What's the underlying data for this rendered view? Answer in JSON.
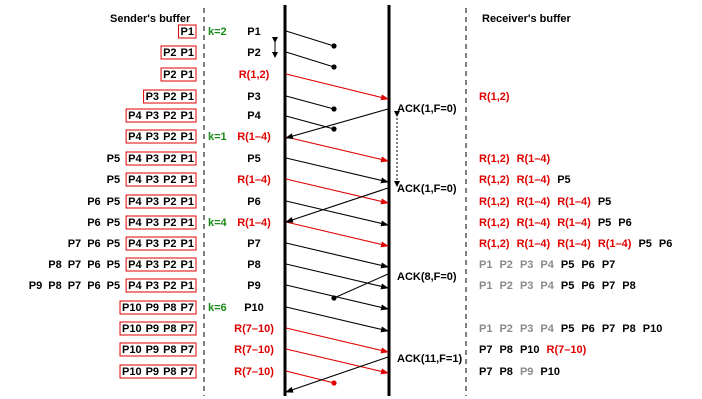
{
  "headers": {
    "sender": "Sender's buffer",
    "receiver": "Receiver's buffer"
  },
  "colors": {
    "black": "#000000",
    "red": "#e00000",
    "green": "#1a8a1a",
    "gray": "#8a8a8a",
    "box": "#e00000"
  },
  "rows": [
    {
      "sender_plain": [],
      "sender_boxed": [
        "P1"
      ],
      "k": "k=2",
      "packet": "P1",
      "packet_color": "black"
    },
    {
      "sender_plain": [],
      "sender_boxed": [
        "P2",
        "P1"
      ],
      "k": "",
      "packet": "P2",
      "packet_color": "black"
    },
    {
      "sender_plain": [],
      "sender_boxed": [
        "P2",
        "P1"
      ],
      "k": "",
      "packet": "R(1,2)",
      "packet_color": "red"
    },
    {
      "sender_plain": [],
      "sender_boxed": [
        "P3",
        "P2",
        "P1"
      ],
      "k": "",
      "packet": "P3",
      "packet_color": "black"
    },
    {
      "sender_plain": [],
      "sender_boxed": [
        "P4",
        "P3",
        "P2",
        "P1"
      ],
      "k": "",
      "packet": "P4",
      "packet_color": "black"
    },
    {
      "sender_plain": [],
      "sender_boxed": [
        "P4",
        "P3",
        "P2",
        "P1"
      ],
      "k": "k=1",
      "packet": "R(1–4)",
      "packet_color": "red"
    },
    {
      "sender_plain": [
        "P5"
      ],
      "sender_boxed": [
        "P4",
        "P3",
        "P2",
        "P1"
      ],
      "k": "",
      "packet": "P5",
      "packet_color": "black"
    },
    {
      "sender_plain": [
        "P5"
      ],
      "sender_boxed": [
        "P4",
        "P3",
        "P2",
        "P1"
      ],
      "k": "",
      "packet": "R(1–4)",
      "packet_color": "red"
    },
    {
      "sender_plain": [
        "P6",
        "P5"
      ],
      "sender_boxed": [
        "P4",
        "P3",
        "P2",
        "P1"
      ],
      "k": "",
      "packet": "P6",
      "packet_color": "black"
    },
    {
      "sender_plain": [
        "P6",
        "P5"
      ],
      "sender_boxed": [
        "P4",
        "P3",
        "P2",
        "P1"
      ],
      "k": "k=4",
      "packet": "R(1–4)",
      "packet_color": "red"
    },
    {
      "sender_plain": [
        "P7",
        "P6",
        "P5"
      ],
      "sender_boxed": [
        "P4",
        "P3",
        "P2",
        "P1"
      ],
      "k": "",
      "packet": "P7",
      "packet_color": "black"
    },
    {
      "sender_plain": [
        "P8",
        "P7",
        "P6",
        "P5"
      ],
      "sender_boxed": [
        "P4",
        "P3",
        "P2",
        "P1"
      ],
      "k": "",
      "packet": "P8",
      "packet_color": "black"
    },
    {
      "sender_plain": [
        "P9",
        "P8",
        "P7",
        "P6",
        "P5"
      ],
      "sender_boxed": [
        "P4",
        "P3",
        "P2",
        "P1"
      ],
      "k": "",
      "packet": "P9",
      "packet_color": "black"
    },
    {
      "sender_plain": [],
      "sender_boxed": [
        "P10",
        "P9",
        "P8",
        "P7"
      ],
      "k": "k=6",
      "packet": "P10",
      "packet_color": "black"
    },
    {
      "sender_plain": [],
      "sender_boxed": [
        "P10",
        "P9",
        "P8",
        "P7"
      ],
      "k": "",
      "packet": "R(7–10)",
      "packet_color": "red"
    },
    {
      "sender_plain": [],
      "sender_boxed": [
        "P10",
        "P9",
        "P8",
        "P7"
      ],
      "k": "",
      "packet": "R(7–10)",
      "packet_color": "red"
    },
    {
      "sender_plain": [],
      "sender_boxed": [
        "P10",
        "P9",
        "P8",
        "P7"
      ],
      "k": "",
      "packet": "R(7–10)",
      "packet_color": "red"
    }
  ],
  "acks": [
    {
      "label": "ACK(1,F=0)"
    },
    {
      "label": "ACK(1,F=0)"
    },
    {
      "label": "ACK(8,F=0)"
    },
    {
      "label": "ACK(11,F=1)"
    }
  ],
  "receiver_rows": [
    [
      {
        "t": "R(1,2)",
        "c": "red"
      }
    ],
    [
      {
        "t": "R(1,2)",
        "c": "red"
      },
      {
        "t": "R(1–4)",
        "c": "red"
      }
    ],
    [
      {
        "t": "R(1,2)",
        "c": "red"
      },
      {
        "t": "R(1–4)",
        "c": "red"
      },
      {
        "t": "P5",
        "c": "black"
      }
    ],
    [
      {
        "t": "R(1,2)",
        "c": "red"
      },
      {
        "t": "R(1–4)",
        "c": "red"
      },
      {
        "t": "R(1–4)",
        "c": "red"
      },
      {
        "t": "P5",
        "c": "black"
      }
    ],
    [
      {
        "t": "R(1,2)",
        "c": "red"
      },
      {
        "t": "R(1–4)",
        "c": "red"
      },
      {
        "t": "R(1–4)",
        "c": "red"
      },
      {
        "t": "P5",
        "c": "black"
      },
      {
        "t": "P6",
        "c": "black"
      }
    ],
    [
      {
        "t": "R(1,2)",
        "c": "red"
      },
      {
        "t": "R(1–4)",
        "c": "red"
      },
      {
        "t": "R(1–4)",
        "c": "red"
      },
      {
        "t": "R(1–4)",
        "c": "red"
      },
      {
        "t": "P5",
        "c": "black"
      },
      {
        "t": "P6",
        "c": "black"
      }
    ],
    [
      {
        "t": "P1",
        "c": "gray"
      },
      {
        "t": "P2",
        "c": "gray"
      },
      {
        "t": "P3",
        "c": "gray"
      },
      {
        "t": "P4",
        "c": "gray"
      },
      {
        "t": "P5",
        "c": "black"
      },
      {
        "t": "P6",
        "c": "black"
      },
      {
        "t": "P7",
        "c": "black"
      }
    ],
    [
      {
        "t": "P1",
        "c": "gray"
      },
      {
        "t": "P2",
        "c": "gray"
      },
      {
        "t": "P3",
        "c": "gray"
      },
      {
        "t": "P4",
        "c": "gray"
      },
      {
        "t": "P5",
        "c": "black"
      },
      {
        "t": "P6",
        "c": "black"
      },
      {
        "t": "P7",
        "c": "black"
      },
      {
        "t": "P8",
        "c": "black"
      }
    ],
    [
      {
        "t": "P1",
        "c": "gray"
      },
      {
        "t": "P2",
        "c": "gray"
      },
      {
        "t": "P3",
        "c": "gray"
      },
      {
        "t": "P4",
        "c": "gray"
      },
      {
        "t": "P5",
        "c": "black"
      },
      {
        "t": "P6",
        "c": "black"
      },
      {
        "t": "P7",
        "c": "black"
      },
      {
        "t": "P8",
        "c": "black"
      },
      {
        "t": "P10",
        "c": "black"
      }
    ],
    [
      {
        "t": "P7",
        "c": "black"
      },
      {
        "t": "P8",
        "c": "black"
      },
      {
        "t": "P10",
        "c": "black"
      },
      {
        "t": "R(7–10)",
        "c": "red"
      }
    ],
    [
      {
        "t": "P7",
        "c": "black"
      },
      {
        "t": "P8",
        "c": "black"
      },
      {
        "t": "P9",
        "c": "gray"
      },
      {
        "t": "P10",
        "c": "black"
      }
    ]
  ]
}
